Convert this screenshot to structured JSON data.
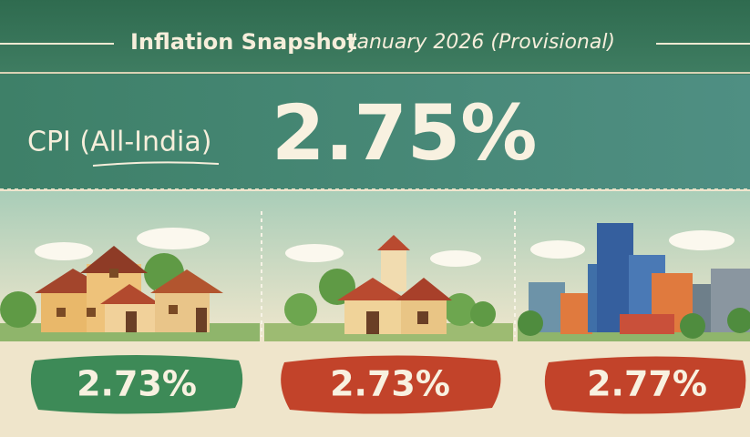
{
  "header": {
    "title": "Inflation Snapshot",
    "subtitle": "January 2026 (Provisional)"
  },
  "headline": {
    "label": "CPI (All-India)",
    "value": "2.75%"
  },
  "panels": [
    {
      "value": "2.73%"
    },
    {
      "value": "2.73%"
    },
    {
      "value": "2.77%"
    }
  ]
}
